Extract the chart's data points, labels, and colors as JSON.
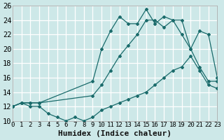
{
  "bg_color": "#cde8e8",
  "grid_color": "#b8d8d8",
  "line_color": "#1a6b6b",
  "xlim": [
    0,
    23
  ],
  "ylim": [
    10,
    26
  ],
  "xticks": [
    0,
    1,
    2,
    3,
    4,
    5,
    6,
    7,
    8,
    9,
    10,
    11,
    12,
    13,
    14,
    15,
    16,
    17,
    18,
    19,
    20,
    21,
    22,
    23
  ],
  "yticks": [
    10,
    12,
    14,
    16,
    18,
    20,
    22,
    24,
    26
  ],
  "xlabel": "Humidex (Indice chaleur)",
  "xlabel_fontsize": 8,
  "xtick_fontsize": 6.5,
  "ytick_fontsize": 7.5,
  "line_top_x": [
    0,
    1,
    2,
    3,
    9,
    10,
    11,
    12,
    13,
    14,
    15,
    16,
    17,
    18,
    19,
    20,
    21,
    22,
    23
  ],
  "line_top_y": [
    12,
    12.5,
    12.5,
    12.5,
    15.5,
    20,
    22.5,
    24.5,
    23.5,
    23.5,
    25.5,
    23.5,
    24.5,
    24,
    24,
    20,
    22.5,
    22,
    16
  ],
  "line_mid_x": [
    0,
    1,
    2,
    3,
    9,
    10,
    11,
    12,
    13,
    14,
    15,
    16,
    17,
    18,
    19,
    20,
    21,
    22,
    23
  ],
  "line_mid_y": [
    12,
    12.5,
    12.5,
    12.5,
    13.5,
    15,
    17,
    19,
    20.5,
    22,
    24,
    24,
    23,
    24,
    22,
    20,
    17.5,
    15.5,
    15.5
  ],
  "line_bot_x": [
    0,
    1,
    2,
    3,
    4,
    5,
    6,
    7,
    8,
    9,
    10,
    11,
    12,
    13,
    14,
    15,
    16,
    17,
    18,
    19,
    20,
    21,
    22,
    23
  ],
  "line_bot_y": [
    12,
    12.5,
    12,
    12,
    11,
    10.5,
    10,
    10.5,
    10,
    10.5,
    11.5,
    12,
    12.5,
    13,
    13.5,
    14,
    15,
    16,
    17,
    17.5,
    19,
    17,
    15,
    14.5
  ]
}
